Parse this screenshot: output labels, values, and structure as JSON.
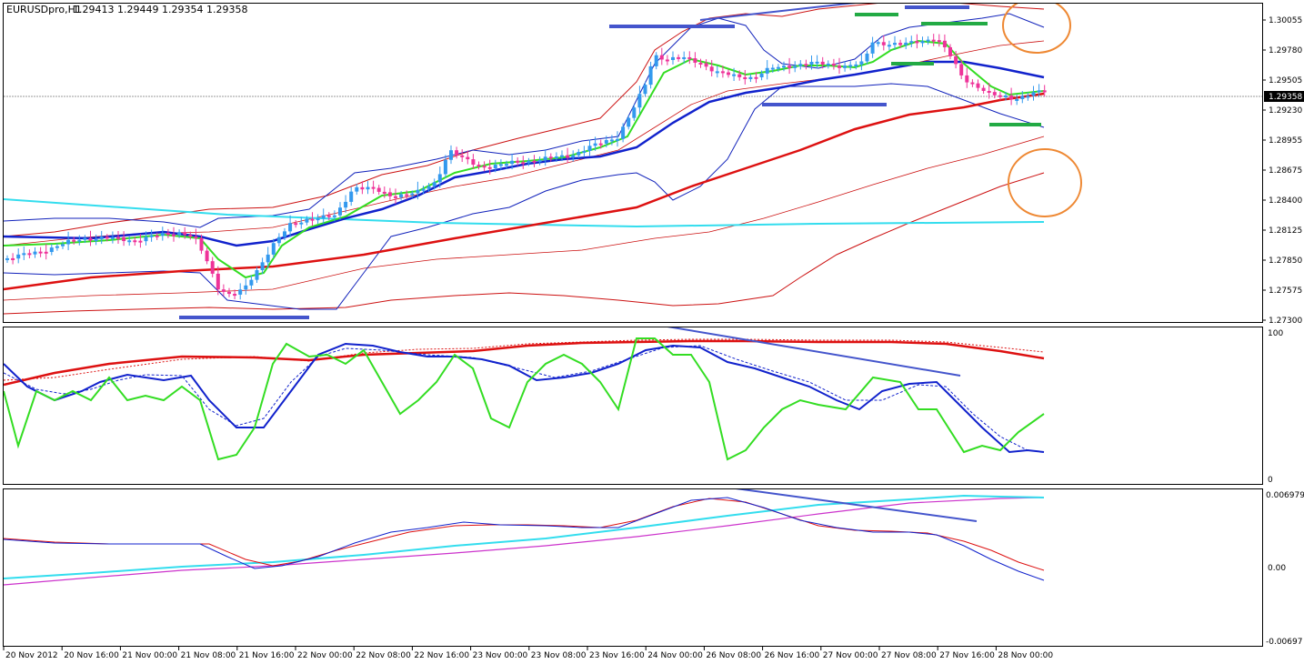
{
  "window": {
    "symbol": "EURUSDpro,H1",
    "ohlc": "1.29413 1.29449 1.29354 1.29358"
  },
  "chart_data": {
    "type": "line",
    "panes": [
      {
        "name": "price",
        "kind": "candlestick",
        "ylim": [
          1.273,
          1.3033
        ],
        "y_ticks": [
          "1.30055",
          "1.29780",
          "1.29505",
          "1.29230",
          "1.28955",
          "1.28675",
          "1.28400",
          "1.28125",
          "1.27850",
          "1.27575",
          "1.27300"
        ],
        "current_price": "1.29358",
        "indicators": [
          "bollinger-bands",
          "moving-averages"
        ]
      },
      {
        "name": "oscillator",
        "ylim": [
          0,
          100
        ],
        "y_ticks": [
          "100",
          "0"
        ]
      },
      {
        "name": "macd",
        "ylim": [
          -0.00697,
          0.00697
        ],
        "y_ticks": [
          "0.006979",
          "0.00",
          "-0.00697"
        ]
      }
    ],
    "x_tick_labels": [
      "20 Nov 2012",
      "20 Nov 16:00",
      "21 Nov 00:00",
      "21 Nov 08:00",
      "21 Nov 16:00",
      "22 Nov 00:00",
      "22 Nov 08:00",
      "22 Nov 16:00",
      "23 Nov 00:00",
      "23 Nov 08:00",
      "23 Nov 16:00",
      "24 Nov 00:00",
      "26 Nov 08:00",
      "26 Nov 16:00",
      "27 Nov 00:00",
      "27 Nov 08:00",
      "27 Nov 16:00",
      "28 Nov 00:00"
    ],
    "colors": {
      "bull_candle": "#3399ee",
      "bear_candle": "#ee3399",
      "ema_slow": "#dd1111",
      "ema_mid": "#1122cc",
      "ema_fast": "#33dd22",
      "cyan_trend": "#33ddee",
      "annotation_blue": "#4455cc",
      "annotation_green": "#22aa44",
      "circle": "#ee8833"
    }
  }
}
